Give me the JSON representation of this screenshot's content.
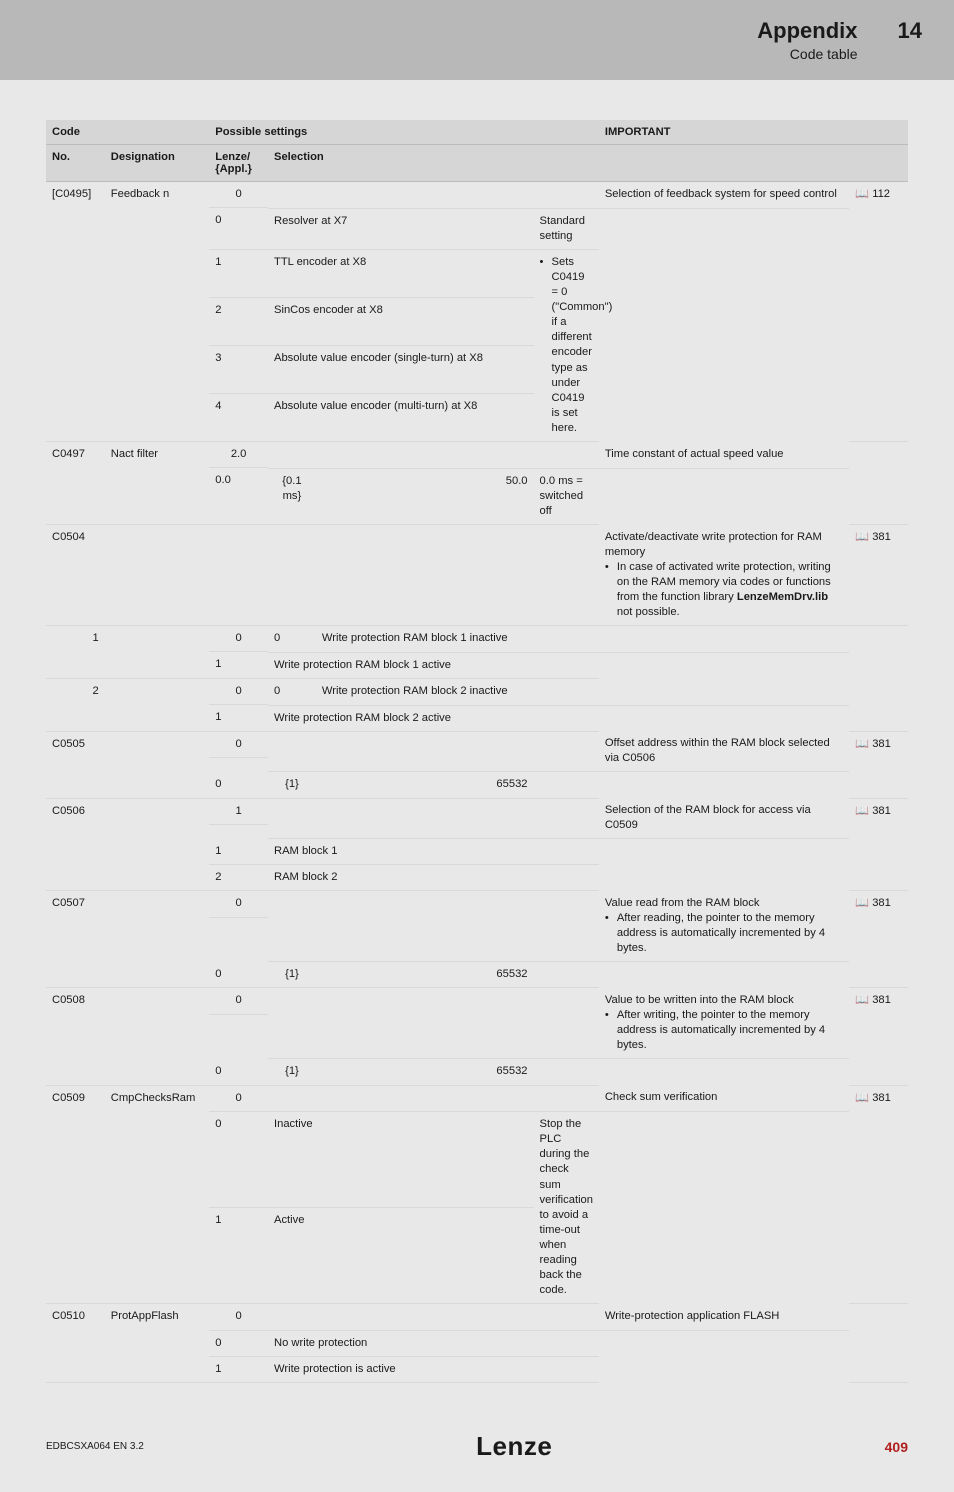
{
  "header": {
    "title": "Appendix",
    "subtitle": "Code table",
    "chapter": "14"
  },
  "columns": {
    "code": "Code",
    "possible": "Possible settings",
    "important": "IMPORTANT",
    "no": "No.",
    "designation": "Designation",
    "lenze": "Lenze/\n{Appl.}",
    "selection": "Selection"
  },
  "rows": {
    "c0495": {
      "no": "[C0495]",
      "designation": "Feedback n",
      "lenze": "0",
      "imp0": "Selection of feedback system for speed control",
      "ref": "📖 112",
      "s0n": "0",
      "s0t": "Resolver at X7",
      "imp_std": "Standard setting",
      "s1n": "1",
      "s1t": "TTL encoder at X8",
      "imp_bullet": "Sets C0419 = 0 (\"Common\") if a different encoder type as under C0419 is set here.",
      "s2n": "2",
      "s2t": "SinCos encoder at X8",
      "s3n": "3",
      "s3t": "Absolute value encoder (single-turn) at X8",
      "s4n": "4",
      "s4t": "Absolute value encoder (multi-turn) at X8"
    },
    "c0497": {
      "no": "C0497",
      "designation": "Nact filter",
      "lenze": "2.0",
      "imp": "Time constant of actual speed value",
      "min": "0.0",
      "step": "{0.1 ms}",
      "max": "50.0",
      "offnote": "0.0 ms = switched off"
    },
    "c0504": {
      "no": "C0504",
      "imp": "Activate/deactivate write protection for RAM memory",
      "imp_b": "In case of activated write protection, writing on the RAM memory via codes or functions from the function library ",
      "imp_b_bold": "LenzeMemDrv.lib",
      "imp_b_tail": " not possible.",
      "ref": "📖 381",
      "sub1_no": "1",
      "sub1_lenze": "0",
      "sub1_o0n": "0",
      "sub1_o0t": "Write protection RAM block 1 inactive",
      "sub1_o1n": "1",
      "sub1_o1t": "Write protection RAM block 1 active",
      "sub2_no": "2",
      "sub2_lenze": "0",
      "sub2_o0n": "0",
      "sub2_o0t": "Write protection RAM block 2 inactive",
      "sub2_o1n": "1",
      "sub2_o1t": "Write protection RAM block 2 active"
    },
    "c0505": {
      "no": "C0505",
      "lenze": "0",
      "imp": "Offset address within the RAM block selected via C0506",
      "ref": "📖 381",
      "min": "0",
      "step": "{1}",
      "max": "65532"
    },
    "c0506": {
      "no": "C0506",
      "lenze": "1",
      "imp": "Selection of the RAM block for access via C0509",
      "ref": "📖 381",
      "o1n": "1",
      "o1t": "RAM block 1",
      "o2n": "2",
      "o2t": "RAM block 2"
    },
    "c0507": {
      "no": "C0507",
      "lenze": "0",
      "imp_main": "Value read from the RAM block",
      "imp_b": "After reading, the pointer to the memory address is automatically incremented by 4 bytes.",
      "ref": "📖 381",
      "min": "0",
      "step": "{1}",
      "max": "65532"
    },
    "c0508": {
      "no": "C0508",
      "lenze": "0",
      "imp_main": "Value to be written into the RAM block",
      "imp_b": "After writing, the pointer to the memory address is automatically incremented by 4 bytes.",
      "ref": "📖 381",
      "min": "0",
      "step": "{1}",
      "max": "65532"
    },
    "c0509": {
      "no": "C0509",
      "designation": "CmpChecksRam",
      "lenze": "0",
      "imp0": "Check sum verification",
      "ref": "📖 381",
      "o0n": "0",
      "o0t": "Inactive",
      "imp_note": "Stop the PLC during the check sum verification to avoid a time-out when reading back the code.",
      "o1n": "1",
      "o1t": "Active"
    },
    "c0510": {
      "no": "C0510",
      "designation": "ProtAppFlash",
      "lenze": "0",
      "imp": "Write-protection application FLASH",
      "o0n": "0",
      "o0t": "No write protection",
      "o1n": "1",
      "o1t": "Write protection is active"
    }
  },
  "footer": {
    "left": "EDBCSXA064  EN  3.2",
    "logo": "Lenze",
    "page": "409"
  }
}
